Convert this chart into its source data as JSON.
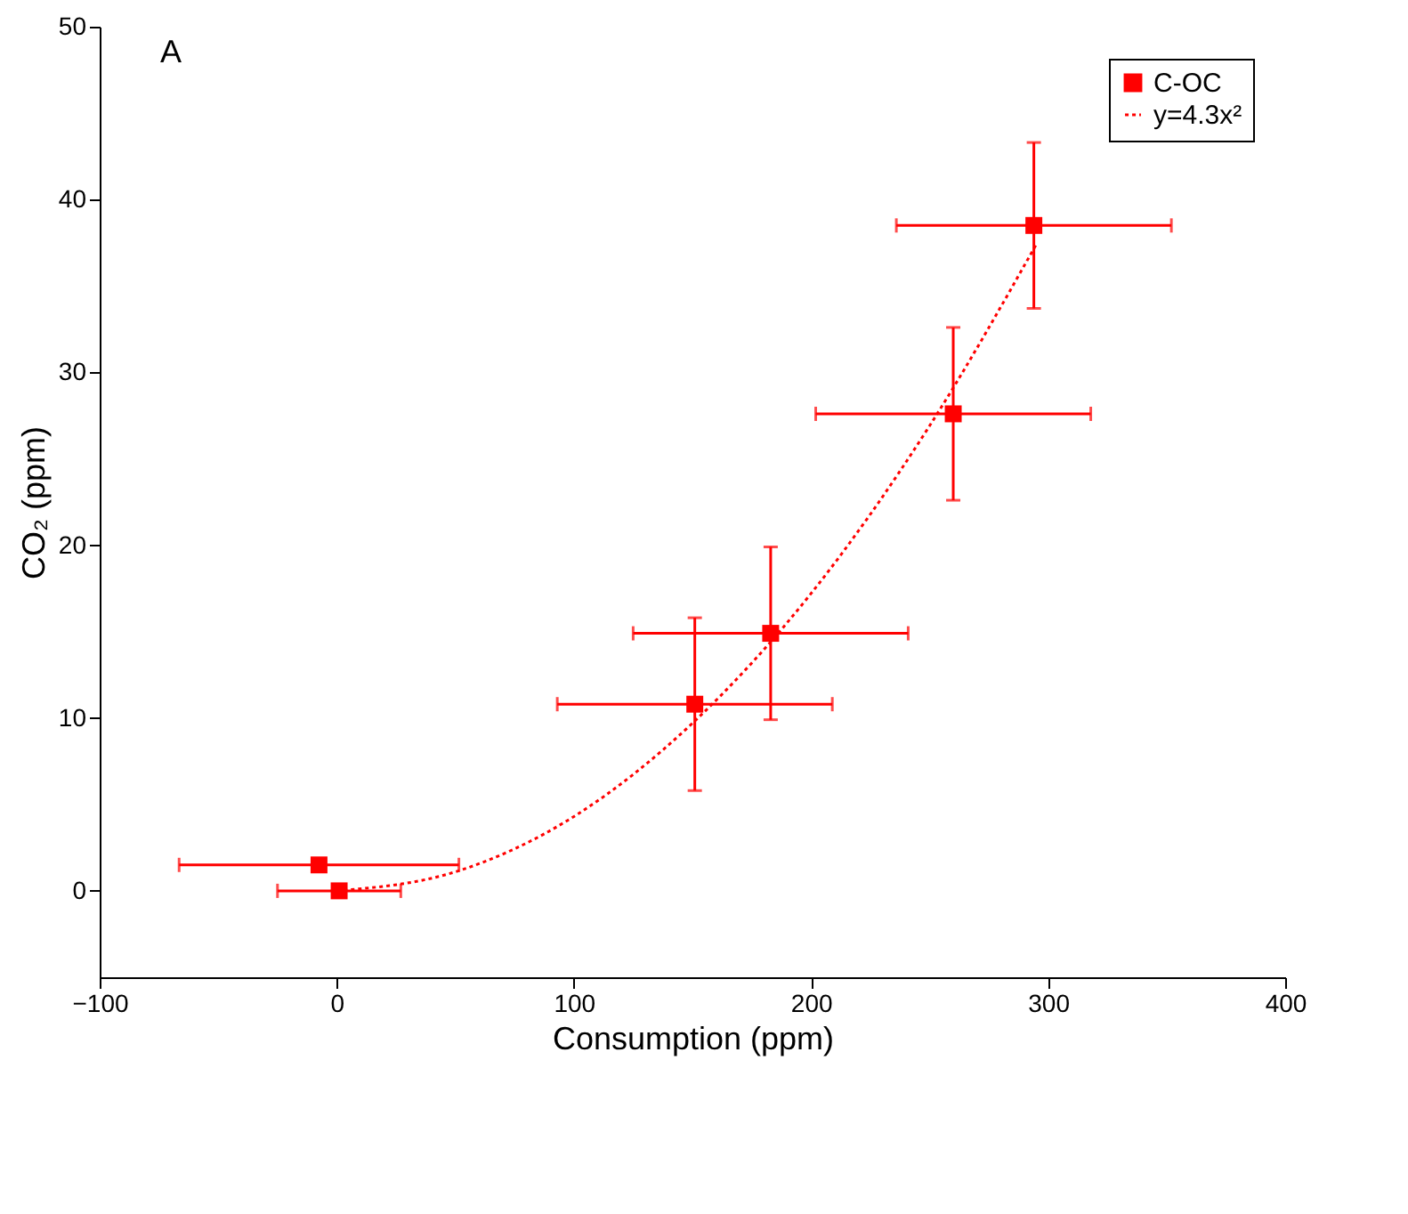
{
  "chart_data": {
    "type": "scatter",
    "xlabel": "Consumption (ppm)",
    "ylabel": "CO₂ (ppm)",
    "annotations": [
      "A"
    ],
    "xlim": [
      -100,
      400
    ],
    "xticks": [
      -100,
      0,
      100,
      200,
      300,
      400
    ],
    "ylim": [
      -5,
      50
    ],
    "yticks": [
      0,
      10,
      20,
      30,
      40,
      50
    ],
    "legend": "top right",
    "series": [
      {
        "name": "C-OC",
        "color": "#ff0000",
        "marker": "square",
        "x": [
          -7.5,
          1,
          151,
          183,
          260,
          294
        ],
        "values": [
          1.5,
          0,
          10.8,
          14.9,
          27.6,
          38.5
        ],
        "errors": [
          null,
          null,
          5,
          5,
          5,
          4.8
        ],
        "xerrors": [
          59,
          26,
          58,
          58,
          58,
          58
        ]
      },
      {
        "name": "y=4.3x²",
        "type": "line",
        "color": "#ff0000",
        "line_style": "dotted",
        "x": [
          0,
          50,
          100,
          150,
          200,
          250,
          295
        ],
        "values": [
          0,
          1.1,
          4.3,
          9.7,
          17.2,
          26.9,
          37.4
        ]
      }
    ]
  }
}
